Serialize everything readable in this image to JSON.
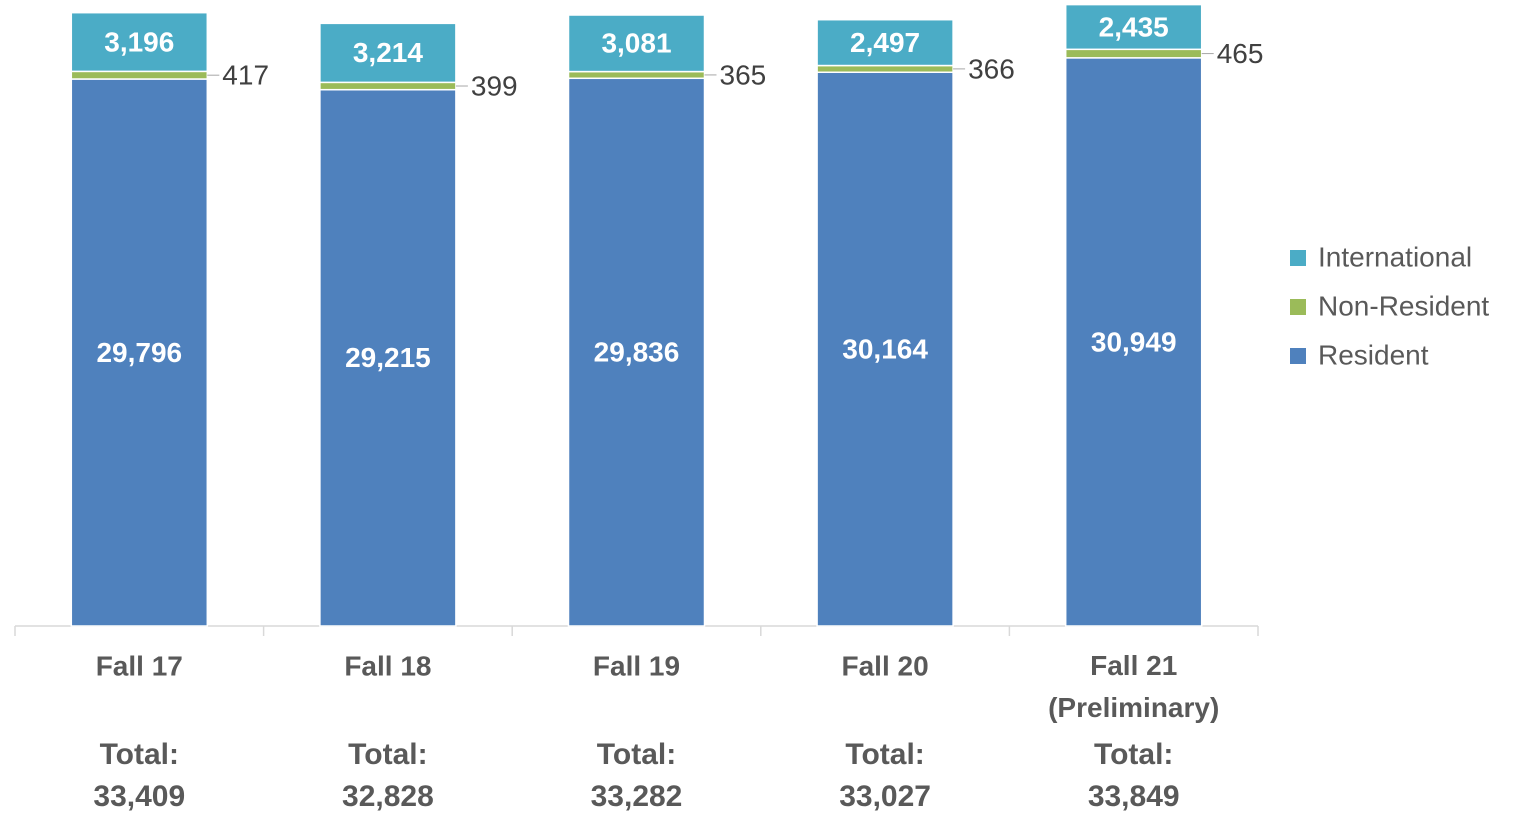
{
  "chart_data": {
    "type": "stacked_bar",
    "categories": [
      "Fall 17",
      "Fall 18",
      "Fall 19",
      "Fall 20",
      "Fall 21 (Preliminary)"
    ],
    "series": [
      {
        "name": "Resident",
        "color": "#4f81bd",
        "values": [
          29796,
          29215,
          29836,
          30164,
          30949
        ],
        "value_labels": [
          "29,796",
          "29,215",
          "29,836",
          "30,164",
          "30,949"
        ]
      },
      {
        "name": "Non-Resident",
        "color": "#9bbb59",
        "values": [
          417,
          399,
          365,
          366,
          465
        ]
      },
      {
        "name": "International",
        "color": "#4bacc6",
        "values": [
          3196,
          3214,
          3081,
          2497,
          2435
        ],
        "value_labels": [
          "3,196",
          "3,214",
          "3,081",
          "2,497",
          "2,435"
        ]
      }
    ],
    "total_prefix": "Total:",
    "totals": [
      33409,
      32828,
      33282,
      33027,
      33849
    ],
    "total_labels": [
      "33,409",
      "32,828",
      "33,282",
      "33,027",
      "33,849"
    ],
    "ylim": [
      0,
      34100
    ],
    "legend": "right"
  }
}
